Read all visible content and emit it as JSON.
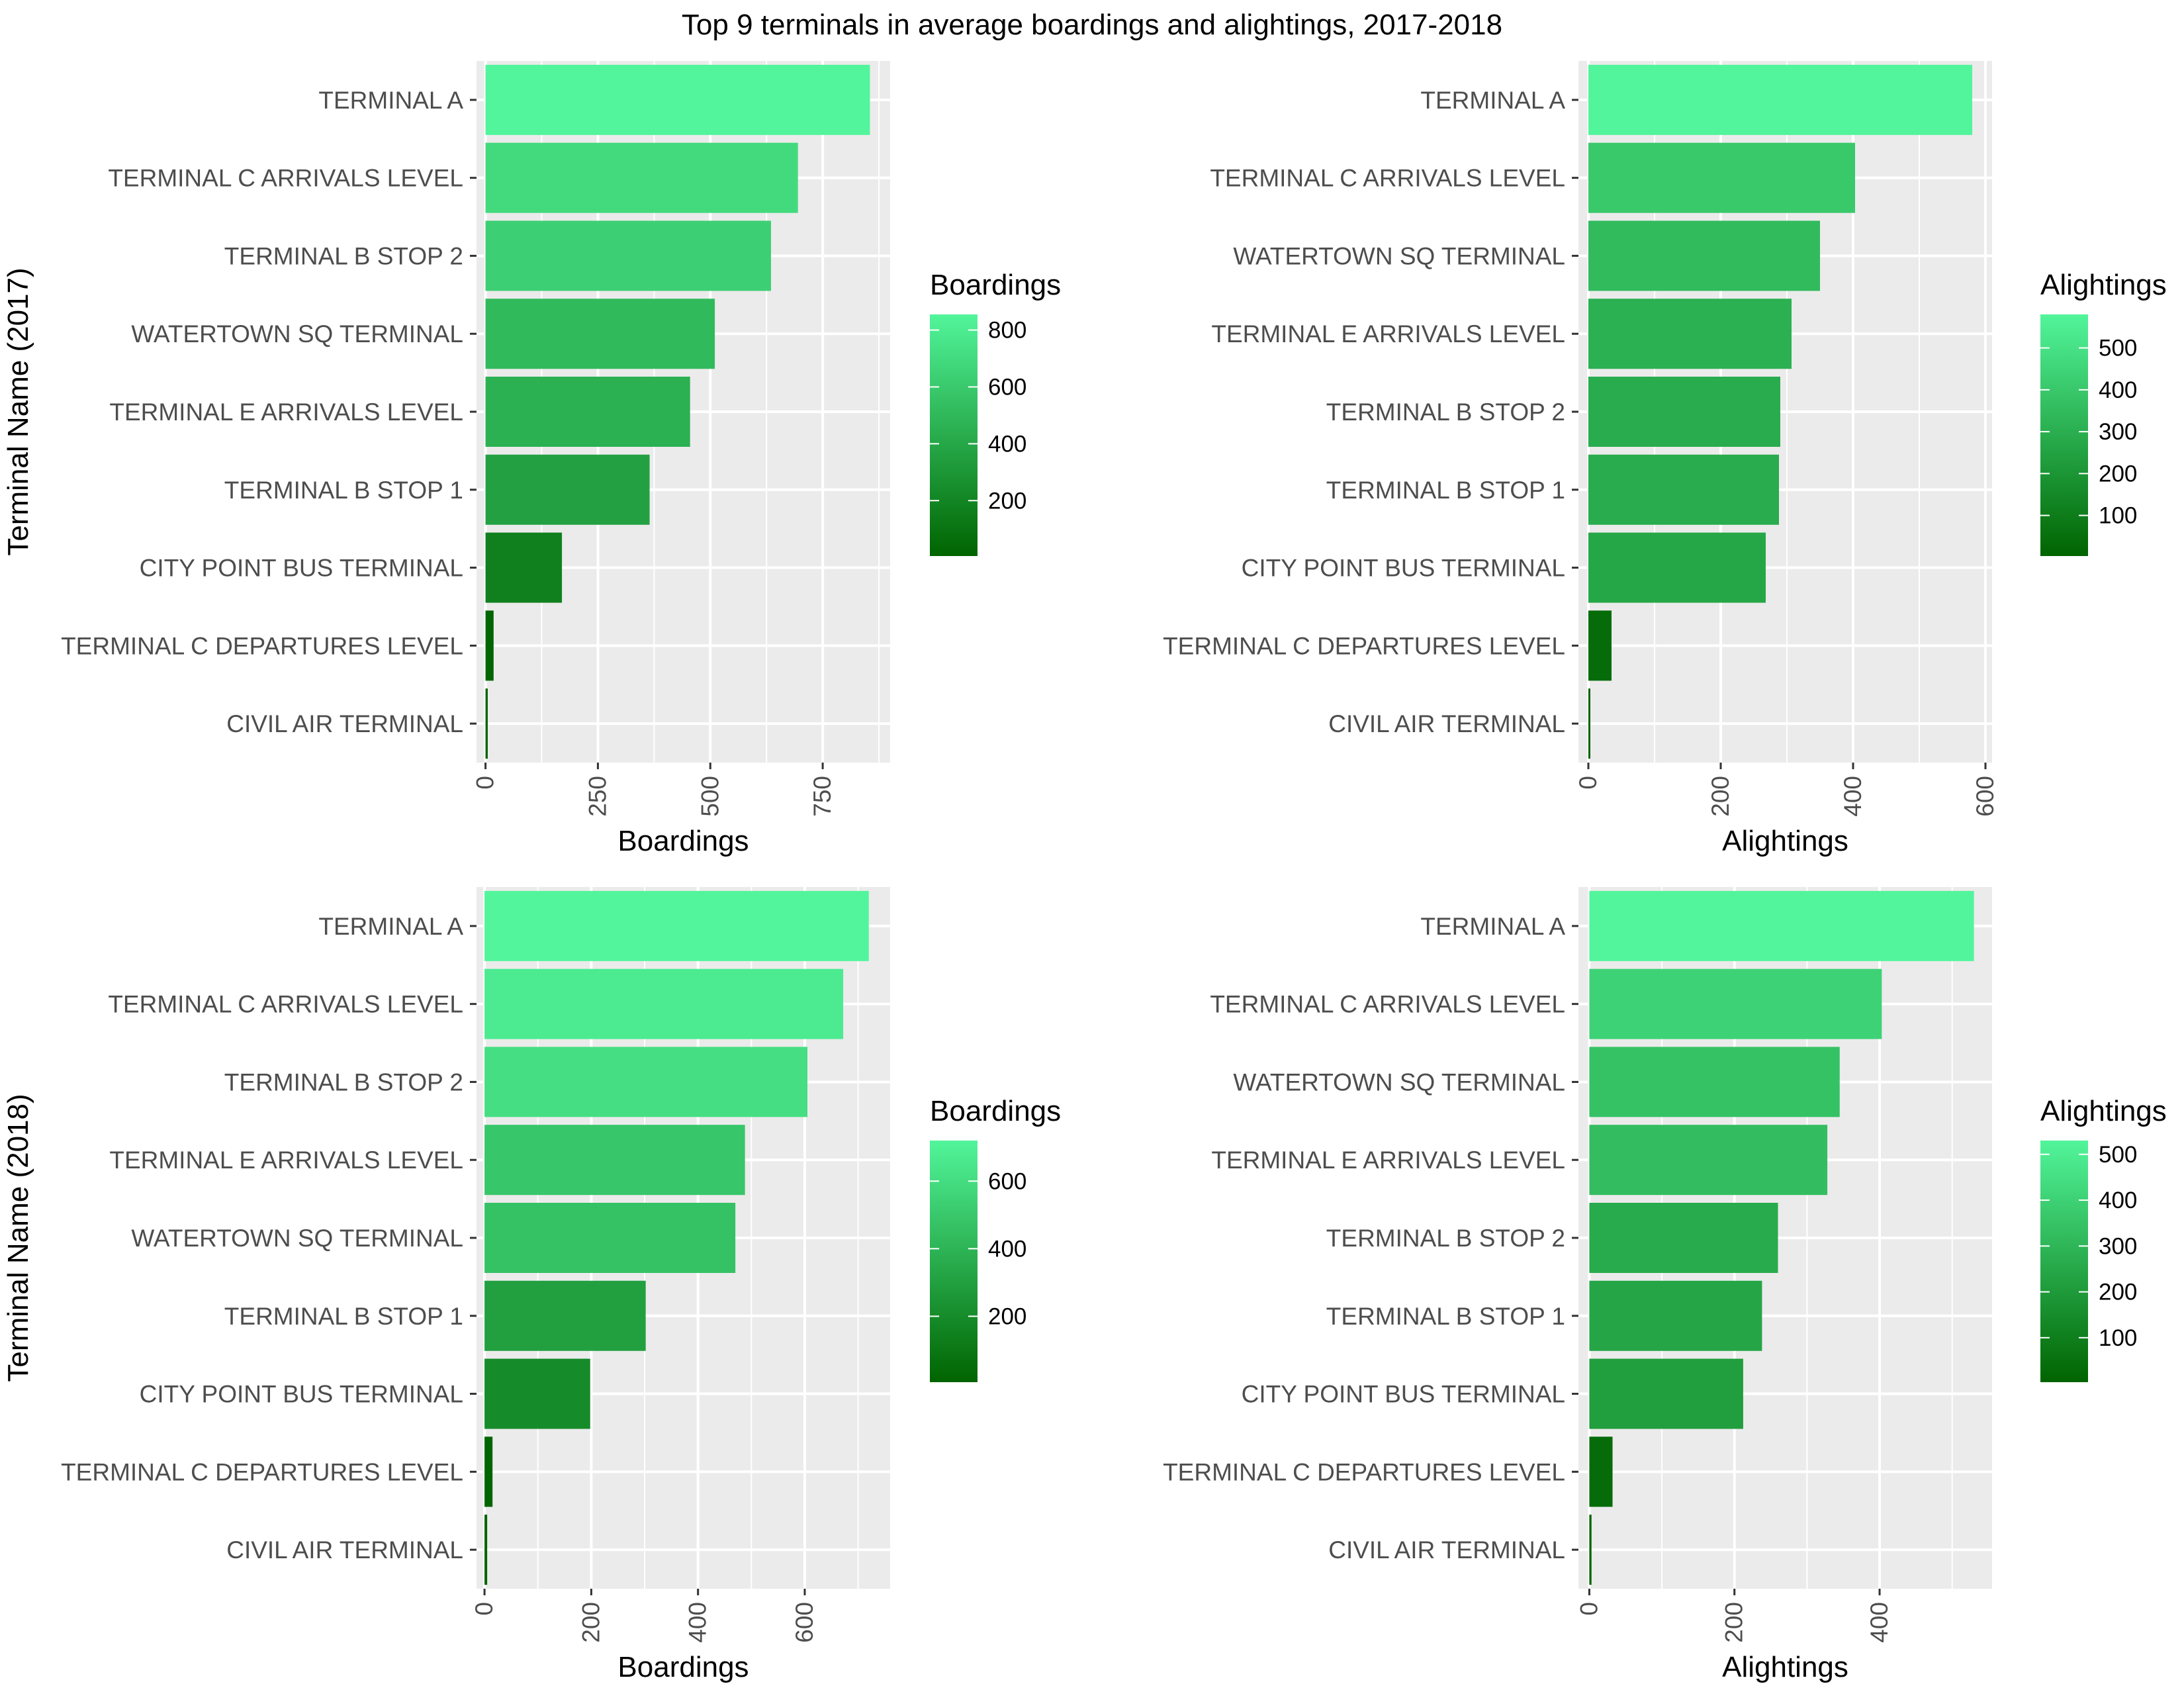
{
  "chart_data": {
    "title": "Top 9 terminals in average boardings and alightings, 2017-2018",
    "type": "bar",
    "orientation": "horizontal",
    "fill_scale": {
      "low": "#006400",
      "high": "#52F59B"
    },
    "panel_background": "#EBEBEB",
    "grid": true,
    "panels": [
      {
        "ylabel": "Terminal Name (2017)",
        "xlabel": "Boardings",
        "legend_title": "Boardings",
        "legend_ticks": [
          200,
          400,
          600,
          800
        ],
        "fill_range": [
          5,
          855
        ],
        "xlim": [
          -20,
          900
        ],
        "xticks": [
          0,
          250,
          500,
          750
        ],
        "x_minor": [
          125,
          375,
          625,
          875
        ],
        "categories": [
          "CIVIL AIR TERMINAL",
          "TERMINAL C DEPARTURES LEVEL",
          "CITY POINT BUS TERMINAL",
          "TERMINAL B STOP 1",
          "TERMINAL E ARRIVALS LEVEL",
          "WATERTOWN SQ TERMINAL",
          "TERMINAL B STOP 2",
          "TERMINAL C ARRIVALS LEVEL",
          "TERMINAL A"
        ],
        "values": [
          5,
          18,
          170,
          365,
          455,
          510,
          635,
          695,
          855
        ]
      },
      {
        "ylabel": "",
        "xlabel": "Alightings",
        "legend_title": "Alightings",
        "legend_ticks": [
          100,
          200,
          300,
          400,
          500
        ],
        "fill_range": [
          3,
          580
        ],
        "xlim": [
          -15,
          610
        ],
        "xticks": [
          0,
          200,
          400,
          600
        ],
        "x_minor": [
          100,
          300,
          500
        ],
        "categories": [
          "CIVIL AIR TERMINAL",
          "TERMINAL C DEPARTURES LEVEL",
          "CITY POINT BUS TERMINAL",
          "TERMINAL B STOP 1",
          "TERMINAL B STOP 2",
          "TERMINAL E ARRIVALS LEVEL",
          "WATERTOWN SQ TERMINAL",
          "TERMINAL C ARRIVALS LEVEL",
          "TERMINAL A"
        ],
        "values": [
          3,
          35,
          268,
          288,
          290,
          307,
          350,
          403,
          580
        ]
      },
      {
        "ylabel": "Terminal Name (2018)",
        "xlabel": "Boardings",
        "legend_title": "Boardings",
        "legend_ticks": [
          200,
          400,
          600
        ],
        "fill_range": [
          5,
          720
        ],
        "xlim": [
          -15,
          760
        ],
        "xticks": [
          0,
          200,
          400,
          600
        ],
        "x_minor": [
          100,
          300,
          500,
          700
        ],
        "categories": [
          "CIVIL AIR TERMINAL",
          "TERMINAL C DEPARTURES LEVEL",
          "CITY POINT BUS TERMINAL",
          "TERMINAL B STOP 1",
          "WATERTOWN SQ TERMINAL",
          "TERMINAL E ARRIVALS LEVEL",
          "TERMINAL B STOP 2",
          "TERMINAL C ARRIVALS LEVEL",
          "TERMINAL A"
        ],
        "values": [
          5,
          15,
          198,
          302,
          470,
          488,
          605,
          672,
          720
        ]
      },
      {
        "ylabel": "",
        "xlabel": "Alightings",
        "legend_title": "Alightings",
        "legend_ticks": [
          100,
          200,
          300,
          400,
          500
        ],
        "fill_range": [
          3,
          530
        ],
        "xlim": [
          -15,
          555
        ],
        "xticks": [
          0,
          200,
          400
        ],
        "x_minor": [
          100,
          300,
          500
        ],
        "categories": [
          "CIVIL AIR TERMINAL",
          "TERMINAL C DEPARTURES LEVEL",
          "CITY POINT BUS TERMINAL",
          "TERMINAL B STOP 1",
          "TERMINAL B STOP 2",
          "TERMINAL E ARRIVALS LEVEL",
          "WATERTOWN SQ TERMINAL",
          "TERMINAL C ARRIVALS LEVEL",
          "TERMINAL A"
        ],
        "values": [
          3,
          32,
          212,
          238,
          260,
          328,
          345,
          403,
          530
        ]
      }
    ]
  }
}
